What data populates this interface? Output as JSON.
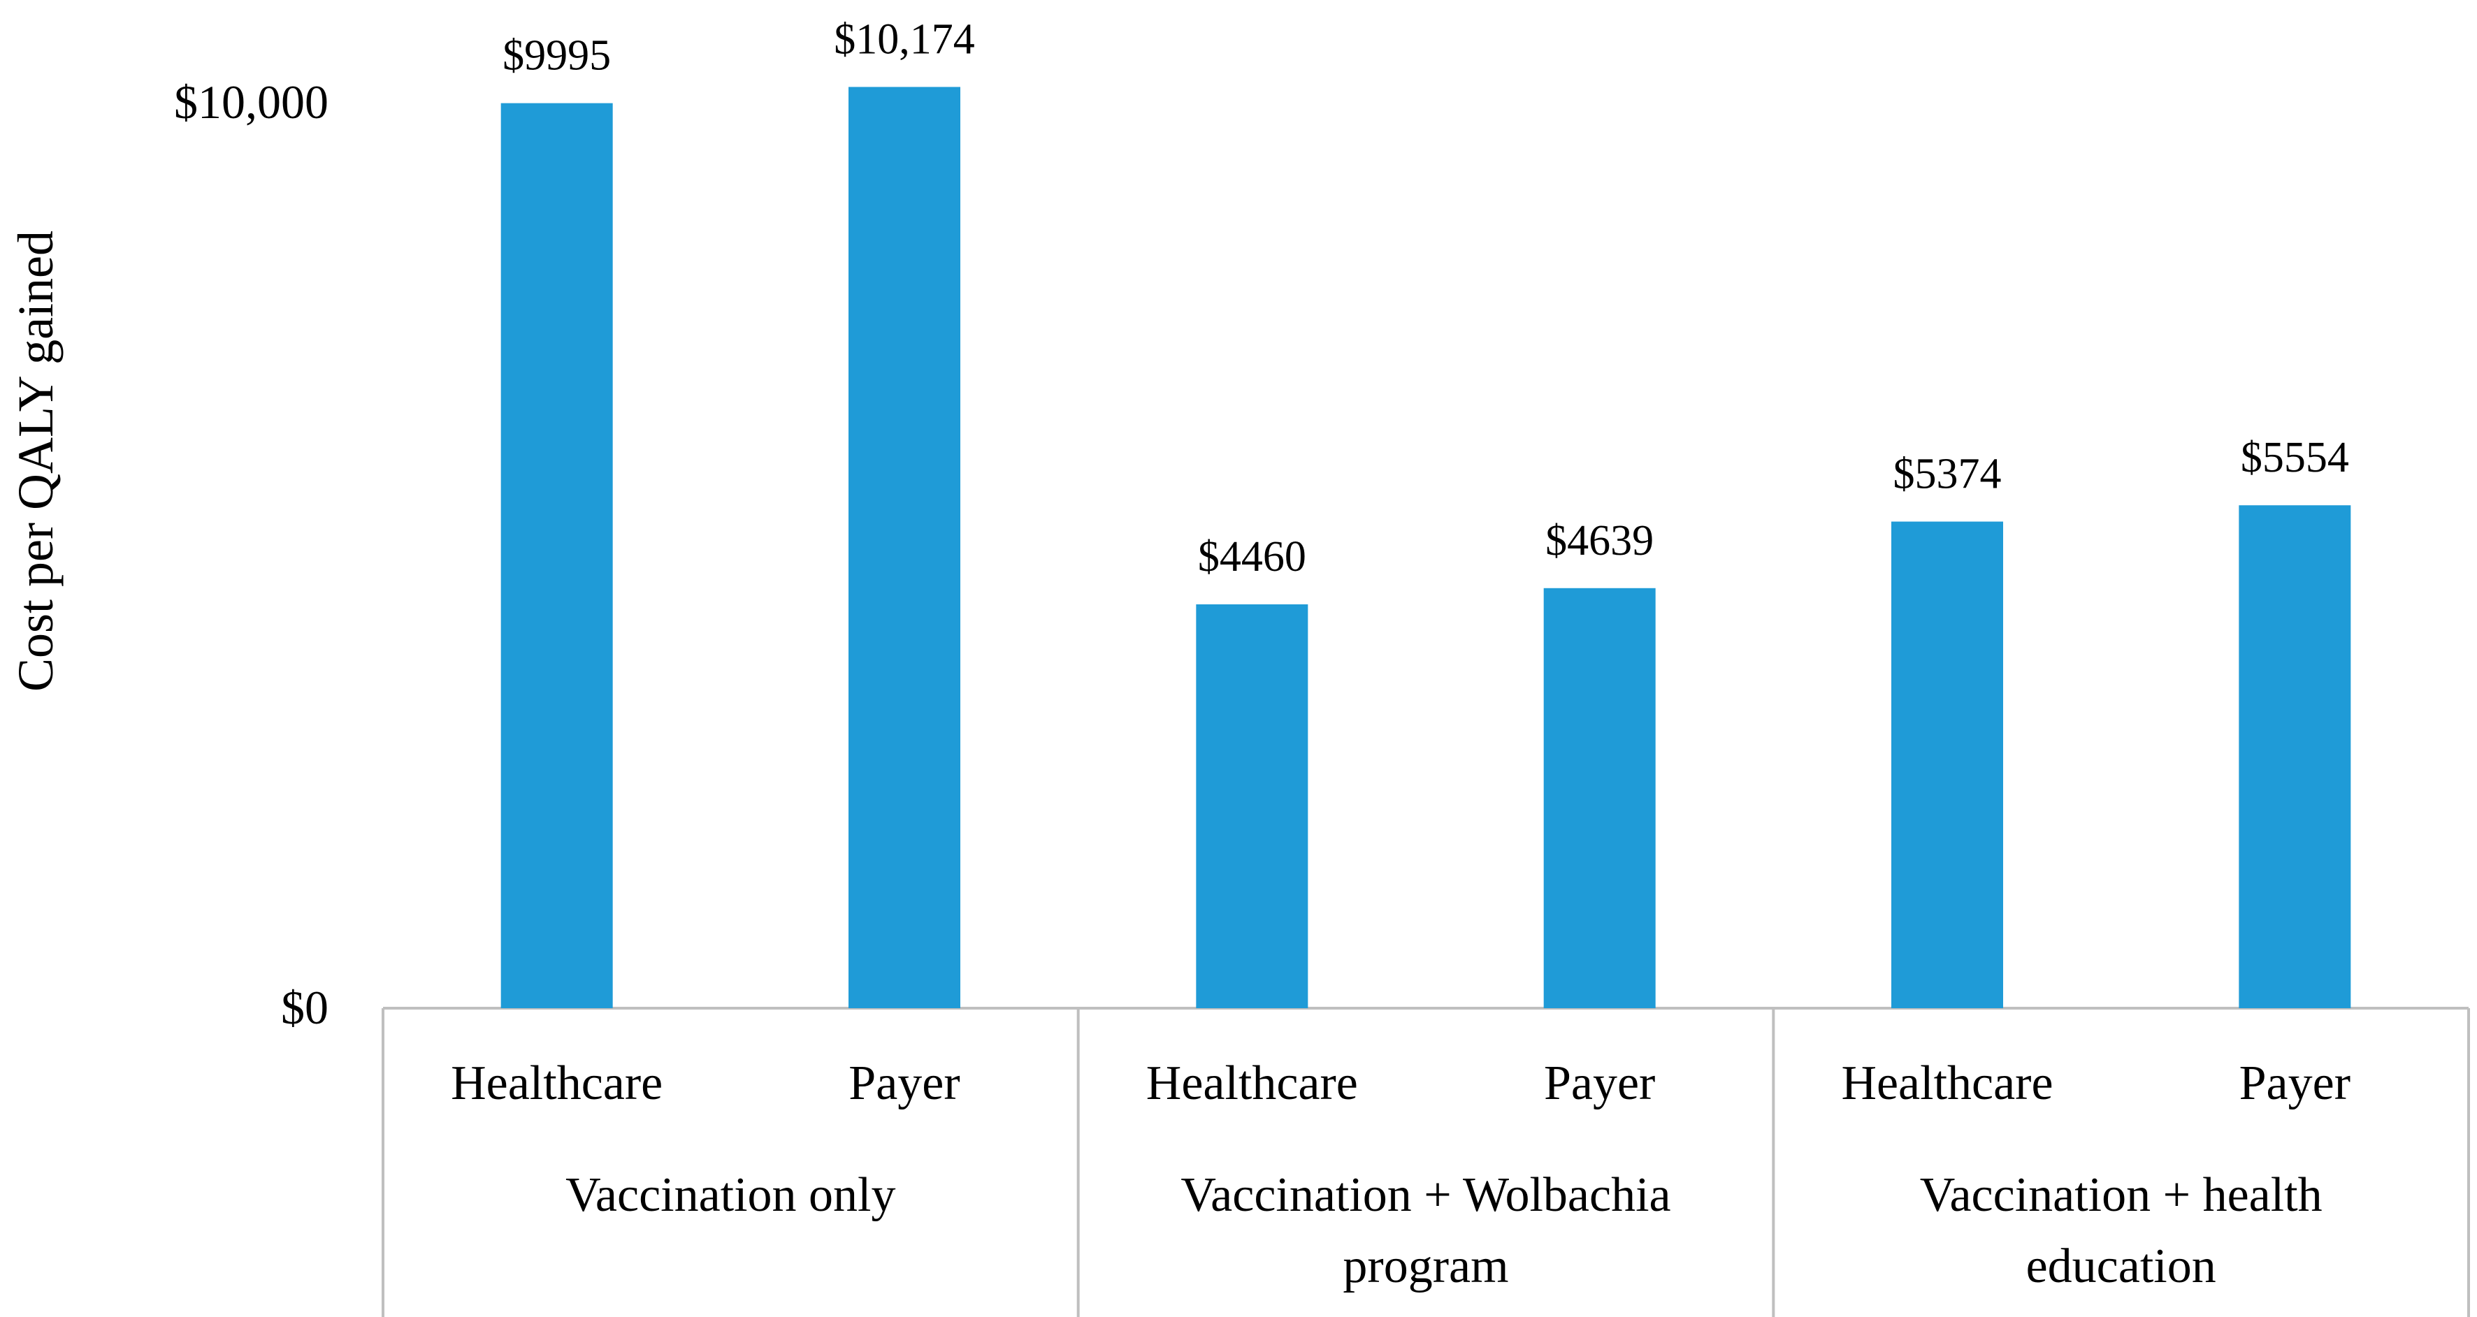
{
  "chart_data": {
    "type": "bar",
    "title": "",
    "xlabel": "",
    "ylabel": "Cost per QALY gained",
    "ylim": [
      0,
      10000
    ],
    "yticks": [
      {
        "value": 0,
        "label": "$0"
      },
      {
        "value": 10000,
        "label": "$10,000"
      }
    ],
    "grid": false,
    "bar_color": "#1f9bd7",
    "groups": [
      {
        "label": "Vaccination only",
        "lines": [
          "Vaccination only"
        ]
      },
      {
        "label": "Vaccination + Wolbachia program",
        "lines": [
          "Vaccination + Wolbachia",
          "program"
        ]
      },
      {
        "label": "Vaccination + health education",
        "lines": [
          "Vaccination + health",
          "education"
        ]
      }
    ],
    "categories": [
      "Healthcare",
      "Payer",
      "Healthcare",
      "Payer",
      "Healthcare",
      "Payer"
    ],
    "values": [
      9995,
      10174,
      4460,
      4639,
      5374,
      5554
    ],
    "data_labels": [
      "$9995",
      "$10,174",
      "$4460",
      "$4639",
      "$5374",
      "$5554"
    ]
  }
}
